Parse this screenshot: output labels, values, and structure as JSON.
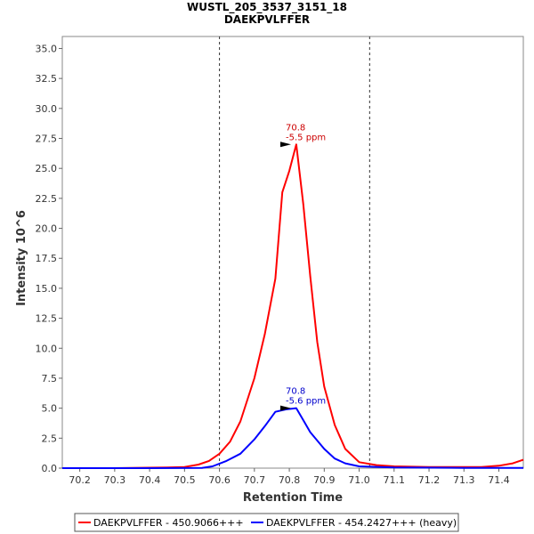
{
  "chart_data": {
    "type": "line",
    "title": "WUSTL_205_3537_3151_18",
    "subtitle": "DAEKPVLFFER",
    "xlabel": "Retention Time",
    "ylabel": "Intensity 10^6",
    "xlim": [
      70.15,
      71.47
    ],
    "ylim": [
      0,
      36
    ],
    "x_ticks": [
      "70.2",
      "70.3",
      "70.4",
      "70.5",
      "70.6",
      "70.7",
      "70.8",
      "70.9",
      "71.0",
      "71.1",
      "71.2",
      "71.3",
      "71.4"
    ],
    "y_ticks": [
      "0.0",
      "2.5",
      "5.0",
      "7.5",
      "10.0",
      "12.5",
      "15.0",
      "17.5",
      "20.0",
      "22.5",
      "25.0",
      "27.5",
      "30.0",
      "32.5",
      "35.0"
    ],
    "boundaries": [
      70.6,
      71.03
    ],
    "series": [
      {
        "name": "DAEKPVLFFER - 450.9066+++",
        "color": "#ff0000",
        "x": [
          70.15,
          70.3,
          70.45,
          70.5,
          70.54,
          70.57,
          70.6,
          70.63,
          70.66,
          70.7,
          70.73,
          70.76,
          70.78,
          70.8,
          70.82,
          70.84,
          70.86,
          70.88,
          70.9,
          70.93,
          70.96,
          71.0,
          71.05,
          71.1,
          71.15,
          71.2,
          71.3,
          71.35,
          71.4,
          71.44,
          71.47
        ],
        "values": [
          0,
          0,
          0.05,
          0.1,
          0.3,
          0.6,
          1.2,
          2.2,
          3.9,
          7.5,
          11.2,
          15.8,
          23.0,
          24.8,
          27.0,
          22.0,
          16.0,
          10.5,
          6.8,
          3.6,
          1.6,
          0.5,
          0.25,
          0.15,
          0.12,
          0.1,
          0.1,
          0.1,
          0.2,
          0.4,
          0.7
        ]
      },
      {
        "name": "DAEKPVLFFER - 454.2427+++ (heavy)",
        "color": "#0000ff",
        "x": [
          70.15,
          70.4,
          70.55,
          70.58,
          70.62,
          70.66,
          70.7,
          70.73,
          70.76,
          70.79,
          70.82,
          70.84,
          70.86,
          70.9,
          70.93,
          70.96,
          71.0,
          71.1,
          71.3,
          71.47
        ],
        "values": [
          0,
          0,
          0.02,
          0.15,
          0.6,
          1.2,
          2.4,
          3.5,
          4.7,
          4.9,
          5.0,
          4.0,
          3.0,
          1.6,
          0.8,
          0.4,
          0.15,
          0.05,
          0.02,
          0.02
        ]
      }
    ],
    "annotations": [
      {
        "series": 0,
        "x": 70.81,
        "y": 27.0,
        "line1": "70.8",
        "line2": "-5.5 ppm",
        "color": "#cc0000"
      },
      {
        "series": 1,
        "x": 70.81,
        "y": 5.0,
        "line1": "70.8",
        "line2": "-5.6 ppm",
        "color": "#0000cc"
      }
    ],
    "legend_position": "bottom"
  }
}
